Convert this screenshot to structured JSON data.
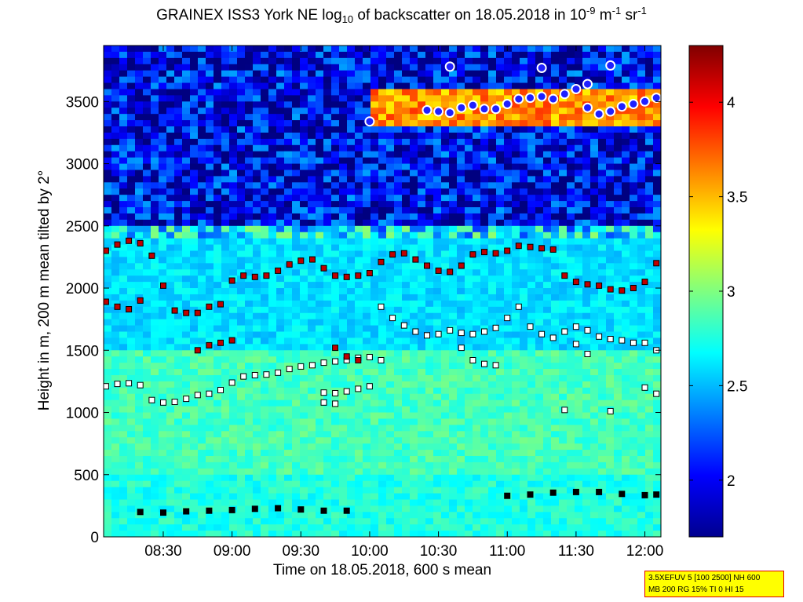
{
  "chart_data": {
    "type": "heatmap",
    "title": {
      "prefix": "GRAINEX ISS3 York NE log",
      "sub": "10",
      "middle": " of backscatter on 18.05.2018 in 10",
      "sup1": "-9",
      "unit1": " m",
      "sup2": "-1",
      "unit2": " sr",
      "sup3": "-1"
    },
    "xlabel": "Time on 18.05.2018, 600 s mean",
    "ylabel": "Height in m, 200 m mean tilted by 2°",
    "xlim": [
      "08:04",
      "12:07"
    ],
    "ylim": [
      0,
      3950
    ],
    "x_ticks": [
      "08:30",
      "09:00",
      "09:30",
      "10:00",
      "10:30",
      "11:00",
      "11:30",
      "12:00"
    ],
    "y_ticks": [
      0,
      500,
      1000,
      1500,
      2000,
      2500,
      3000,
      3500
    ],
    "colorbar": {
      "range": [
        1.7,
        4.3
      ],
      "ticks": [
        2,
        2.5,
        3,
        3.5,
        4
      ],
      "tick_labels": [
        "2",
        "2.5",
        "3",
        "3.5",
        "4"
      ],
      "colormap": "jet"
    },
    "background_field": {
      "description_free": true,
      "layers": [
        {
          "height_range": [
            0,
            500
          ],
          "value": 2.75
        },
        {
          "height_range": [
            500,
            1500
          ],
          "value": 2.85
        },
        {
          "height_range": [
            1500,
            2500
          ],
          "value": 2.6
        },
        {
          "height_range": [
            2500,
            3950
          ],
          "value": 2.0
        }
      ],
      "cloud_layer": {
        "time_range": [
          "10:00",
          "12:07"
        ],
        "height_range": [
          3300,
          3600
        ],
        "value": 3.6
      }
    },
    "series": [
      {
        "marker": "black-square",
        "points": [
          [
            "08:20",
            200
          ],
          [
            "08:30",
            195
          ],
          [
            "08:40",
            205
          ],
          [
            "08:50",
            210
          ],
          [
            "09:00",
            215
          ],
          [
            "09:10",
            225
          ],
          [
            "09:20",
            230
          ],
          [
            "09:30",
            220
          ],
          [
            "09:40",
            210
          ],
          [
            "09:50",
            210
          ],
          [
            "11:00",
            330
          ],
          [
            "11:10",
            340
          ],
          [
            "11:20",
            355
          ],
          [
            "11:30",
            360
          ],
          [
            "11:40",
            360
          ],
          [
            "11:50",
            345
          ],
          [
            "12:00",
            335
          ],
          [
            "12:05",
            340
          ]
        ]
      },
      {
        "marker": "white-black-square",
        "points": [
          [
            "08:05",
            1210
          ],
          [
            "08:10",
            1230
          ],
          [
            "08:15",
            1235
          ],
          [
            "08:20",
            1220
          ],
          [
            "08:25",
            1100
          ],
          [
            "08:30",
            1080
          ],
          [
            "08:35",
            1085
          ],
          [
            "08:40",
            1110
          ],
          [
            "08:45",
            1140
          ],
          [
            "08:50",
            1150
          ],
          [
            "08:55",
            1180
          ],
          [
            "09:00",
            1240
          ],
          [
            "09:05",
            1290
          ],
          [
            "09:10",
            1300
          ],
          [
            "09:15",
            1305
          ],
          [
            "09:20",
            1320
          ],
          [
            "09:25",
            1350
          ],
          [
            "09:30",
            1370
          ],
          [
            "09:35",
            1380
          ],
          [
            "09:40",
            1400
          ],
          [
            "09:45",
            1410
          ],
          [
            "09:50",
            1420
          ],
          [
            "09:55",
            1440
          ],
          [
            "10:00",
            1445
          ],
          [
            "10:05",
            1420
          ],
          [
            "09:40",
            1160
          ],
          [
            "09:45",
            1155
          ],
          [
            "09:50",
            1170
          ],
          [
            "09:55",
            1190
          ],
          [
            "10:00",
            1210
          ],
          [
            "09:40",
            1080
          ],
          [
            "09:45",
            1070
          ],
          [
            "10:05",
            1850
          ],
          [
            "10:10",
            1760
          ],
          [
            "10:15",
            1700
          ],
          [
            "10:20",
            1650
          ],
          [
            "10:25",
            1620
          ],
          [
            "10:30",
            1630
          ],
          [
            "10:35",
            1660
          ],
          [
            "10:40",
            1640
          ],
          [
            "10:45",
            1630
          ],
          [
            "10:50",
            1650
          ],
          [
            "10:55",
            1680
          ],
          [
            "11:00",
            1760
          ],
          [
            "11:05",
            1850
          ],
          [
            "11:10",
            1690
          ],
          [
            "11:15",
            1630
          ],
          [
            "11:20",
            1600
          ],
          [
            "11:25",
            1650
          ],
          [
            "11:30",
            1690
          ],
          [
            "11:35",
            1660
          ],
          [
            "11:40",
            1610
          ],
          [
            "11:45",
            1590
          ],
          [
            "11:50",
            1580
          ],
          [
            "11:55",
            1560
          ],
          [
            "12:00",
            1560
          ],
          [
            "12:05",
            1500
          ],
          [
            "10:40",
            1520
          ],
          [
            "10:45",
            1420
          ],
          [
            "10:50",
            1390
          ],
          [
            "10:55",
            1380
          ],
          [
            "11:30",
            1550
          ],
          [
            "11:35",
            1470
          ],
          [
            "11:25",
            1020
          ],
          [
            "11:45",
            1010
          ],
          [
            "12:00",
            1200
          ],
          [
            "12:05",
            1150
          ]
        ]
      },
      {
        "marker": "dark-red-square",
        "points": [
          [
            "08:05",
            2300
          ],
          [
            "08:10",
            2350
          ],
          [
            "08:15",
            2380
          ],
          [
            "08:20",
            2360
          ],
          [
            "08:25",
            2260
          ],
          [
            "08:30",
            2020
          ],
          [
            "08:35",
            1820
          ],
          [
            "08:40",
            1800
          ],
          [
            "08:45",
            1800
          ],
          [
            "08:50",
            1850
          ],
          [
            "08:55",
            1870
          ],
          [
            "09:00",
            2060
          ],
          [
            "09:05",
            2100
          ],
          [
            "09:10",
            2090
          ],
          [
            "09:15",
            2100
          ],
          [
            "09:20",
            2140
          ],
          [
            "09:25",
            2190
          ],
          [
            "09:30",
            2220
          ],
          [
            "09:35",
            2230
          ],
          [
            "09:40",
            2160
          ],
          [
            "09:45",
            2100
          ],
          [
            "09:50",
            2090
          ],
          [
            "09:55",
            2100
          ],
          [
            "10:00",
            2120
          ],
          [
            "10:05",
            2210
          ],
          [
            "10:10",
            2270
          ],
          [
            "10:15",
            2280
          ],
          [
            "10:20",
            2230
          ],
          [
            "10:25",
            2180
          ],
          [
            "10:30",
            2140
          ],
          [
            "10:35",
            2130
          ],
          [
            "10:40",
            2180
          ],
          [
            "10:45",
            2270
          ],
          [
            "10:50",
            2290
          ],
          [
            "10:55",
            2280
          ],
          [
            "11:00",
            2300
          ],
          [
            "11:05",
            2340
          ],
          [
            "11:10",
            2330
          ],
          [
            "11:15",
            2320
          ],
          [
            "11:20",
            2310
          ],
          [
            "11:25",
            2100
          ],
          [
            "11:30",
            2050
          ],
          [
            "11:35",
            2030
          ],
          [
            "11:40",
            2020
          ],
          [
            "11:45",
            1990
          ],
          [
            "11:50",
            1980
          ],
          [
            "11:55",
            2000
          ],
          [
            "12:00",
            2050
          ],
          [
            "12:05",
            2200
          ],
          [
            "08:05",
            1890
          ],
          [
            "08:10",
            1850
          ],
          [
            "08:15",
            1830
          ],
          [
            "08:20",
            1900
          ],
          [
            "08:45",
            1500
          ],
          [
            "08:50",
            1540
          ],
          [
            "08:55",
            1560
          ],
          [
            "09:00",
            1580
          ],
          [
            "09:45",
            1520
          ],
          [
            "09:50",
            1450
          ],
          [
            "09:55",
            1420
          ]
        ]
      },
      {
        "marker": "blue-circle-white",
        "points": [
          [
            "10:00",
            3340
          ],
          [
            "10:25",
            3430
          ],
          [
            "10:30",
            3420
          ],
          [
            "10:35",
            3410
          ],
          [
            "10:40",
            3450
          ],
          [
            "10:45",
            3470
          ],
          [
            "10:50",
            3440
          ],
          [
            "10:55",
            3440
          ],
          [
            "11:00",
            3480
          ],
          [
            "11:05",
            3520
          ],
          [
            "11:10",
            3530
          ],
          [
            "11:15",
            3540
          ],
          [
            "11:20",
            3520
          ],
          [
            "11:25",
            3560
          ],
          [
            "11:30",
            3600
          ],
          [
            "11:35",
            3450
          ],
          [
            "11:40",
            3400
          ],
          [
            "11:45",
            3420
          ],
          [
            "11:50",
            3460
          ],
          [
            "11:55",
            3480
          ],
          [
            "12:00",
            3500
          ],
          [
            "12:05",
            3530
          ],
          [
            "10:35",
            3780
          ],
          [
            "11:15",
            3770
          ],
          [
            "11:45",
            3790
          ],
          [
            "11:35",
            3640
          ]
        ]
      }
    ],
    "info_box": {
      "line1": "3.5XEFUV 5 [100 2500] NH 600",
      "line2": "MB 200 RG 15% TI 0 HI 15"
    }
  }
}
